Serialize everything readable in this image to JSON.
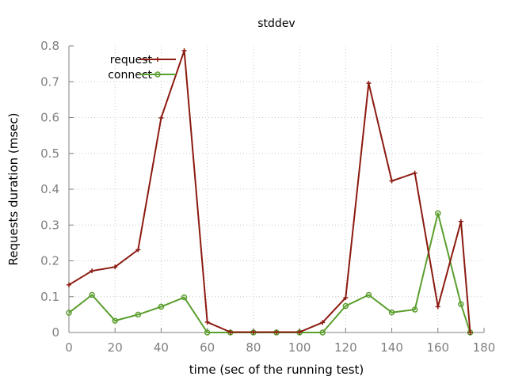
{
  "chart_data": {
    "type": "line",
    "title": "stddev",
    "xlabel": "time (sec of the running test)",
    "ylabel": "Requests duration (msec)",
    "xlim": [
      0,
      180
    ],
    "ylim": [
      0,
      0.8
    ],
    "xticks": [
      0,
      20,
      40,
      60,
      80,
      100,
      120,
      140,
      160,
      180
    ],
    "yticks": [
      0,
      0.1,
      0.2,
      0.3,
      0.4,
      0.5,
      0.6,
      0.7,
      0.8
    ],
    "xtick_labels": [
      "0",
      "20",
      "40",
      "60",
      "80",
      "100",
      "120",
      "140",
      "160",
      "180"
    ],
    "ytick_labels": [
      "0",
      "0.1",
      "0.2",
      "0.3",
      "0.4",
      "0.5",
      "0.6",
      "0.7",
      "0.8"
    ],
    "grid": true,
    "legend_position": "top-left",
    "series": [
      {
        "name": "request",
        "color": "#8b1a10",
        "marker": "plus",
        "x": [
          0,
          10,
          20,
          30,
          40,
          50,
          60,
          70,
          80,
          90,
          100,
          110,
          120,
          130,
          140,
          150,
          160,
          170,
          174
        ],
        "y": [
          0.133,
          0.172,
          0.183,
          0.231,
          0.599,
          0.787,
          0.029,
          0.001,
          0.001,
          0.001,
          0.001,
          0.028,
          0.097,
          0.696,
          0.423,
          0.445,
          0.072,
          0.31,
          0.0
        ]
      },
      {
        "name": "connect",
        "color": "#5a9e2d",
        "marker": "circle",
        "x": [
          0,
          10,
          20,
          30,
          40,
          50,
          60,
          70,
          80,
          90,
          100,
          110,
          120,
          130,
          140,
          150,
          160,
          170,
          174
        ],
        "y": [
          0.055,
          0.105,
          0.033,
          0.05,
          0.072,
          0.098,
          0.0,
          0.0,
          0.0,
          0.0,
          0.0,
          0.0,
          0.074,
          0.105,
          0.056,
          0.064,
          0.333,
          0.079,
          0.0
        ]
      }
    ]
  }
}
